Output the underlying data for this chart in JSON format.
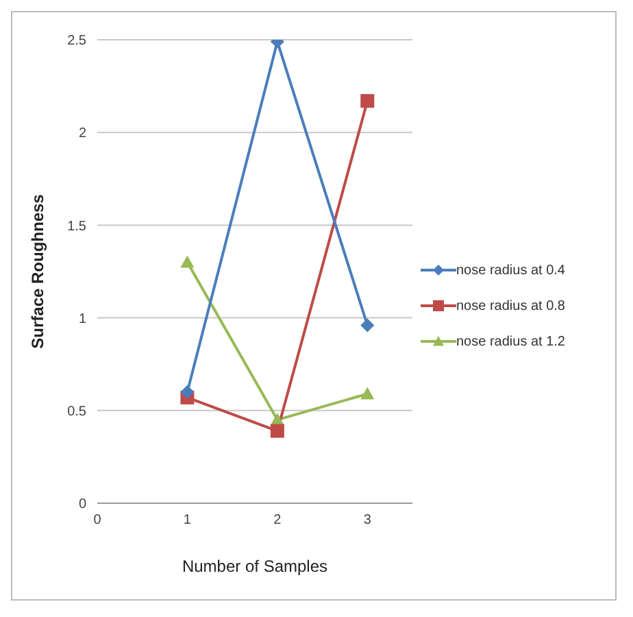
{
  "chart_data": {
    "type": "line",
    "xlabel": "Number of Samples",
    "ylabel": "Surface Roughness",
    "x": [
      1,
      2,
      3
    ],
    "series": [
      {
        "name": "nose radius at 0.4",
        "color": "#4a7ebb",
        "values": [
          0.6,
          2.49,
          0.96
        ],
        "marker": "diamond"
      },
      {
        "name": "nose radius at 0.8",
        "color": "#be4b48",
        "values": [
          0.57,
          0.39,
          2.17
        ],
        "marker": "square"
      },
      {
        "name": "nose radius at 1.2",
        "color": "#98b954",
        "values": [
          1.3,
          0.45,
          0.59
        ],
        "marker": "triangle"
      }
    ],
    "xlim": [
      0,
      3.5
    ],
    "xticks": [
      0,
      1,
      2,
      3
    ],
    "ylim": [
      0,
      2.5
    ],
    "yticks": [
      0,
      0.5,
      1,
      1.5,
      2,
      2.5
    ],
    "grid": "y",
    "legend": "right",
    "line_style": "solid"
  }
}
